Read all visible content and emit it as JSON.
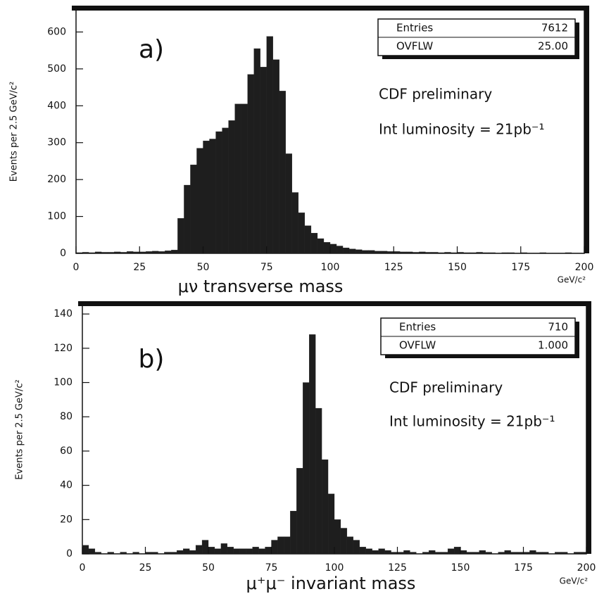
{
  "chart_data": [
    {
      "type": "histogram",
      "label": "a)",
      "ylabel": "Events per 2.5 GeV/c²",
      "xlabel": "μν  transverse mass",
      "xunit": "GeV/c²",
      "stats": [
        [
          "Entries",
          "7612"
        ],
        [
          "OVFLW",
          "25.00"
        ]
      ],
      "annotations": [
        "CDF preliminary",
        "Int luminosity = 21pb⁻¹"
      ],
      "color": "#1e1e1e",
      "bins": [
        0,
        2.5,
        5,
        7.5,
        10,
        12.5,
        15,
        17.5,
        20,
        22.5,
        25,
        27.5,
        30,
        32.5,
        35,
        37.5,
        40,
        42.5,
        45,
        47.5,
        50,
        52.5,
        55,
        57.5,
        60,
        62.5,
        65,
        67.5,
        70,
        72.5,
        75,
        77.5,
        80,
        82.5,
        85,
        87.5,
        90,
        92.5,
        95,
        97.5,
        100,
        102.5,
        105,
        107.5,
        110,
        112.5,
        115,
        117.5,
        120,
        122.5,
        125,
        127.5,
        130,
        132.5,
        135,
        137.5,
        140,
        142.5,
        145,
        147.5,
        150,
        152.5,
        155,
        157.5,
        160,
        162.5,
        165,
        167.5,
        170,
        172.5,
        175,
        177.5,
        180,
        182.5,
        185,
        187.5,
        190,
        192.5,
        195,
        197.5,
        200
      ],
      "values": [
        2,
        3,
        2,
        4,
        3,
        3,
        4,
        3,
        5,
        4,
        4,
        5,
        6,
        5,
        7,
        9,
        95,
        185,
        240,
        285,
        305,
        310,
        330,
        340,
        360,
        405,
        405,
        485,
        555,
        505,
        588,
        525,
        440,
        270,
        165,
        110,
        75,
        55,
        40,
        30,
        25,
        20,
        15,
        12,
        10,
        8,
        8,
        6,
        6,
        5,
        5,
        4,
        4,
        3,
        4,
        3,
        3,
        2,
        3,
        2,
        3,
        2,
        2,
        3,
        2,
        2,
        1,
        2,
        2,
        1,
        2,
        1,
        1,
        2,
        1,
        1,
        1,
        2,
        1,
        1
      ],
      "xlim": [
        0,
        200
      ],
      "xticks": [
        0,
        25,
        50,
        75,
        100,
        125,
        150,
        175,
        200
      ],
      "ylim": [
        0,
        660
      ],
      "yticks": [
        0,
        100,
        200,
        300,
        400,
        500,
        600
      ]
    },
    {
      "type": "histogram",
      "label": "b)",
      "ylabel": "Events per 2.5 GeV/c²",
      "xlabel": "μ⁺μ⁻  invariant mass",
      "xunit": "GeV/c²",
      "stats": [
        [
          "Entries",
          "710"
        ],
        [
          "OVFLW",
          "1.000"
        ]
      ],
      "annotations": [
        "CDF preliminary",
        "Int luminosity = 21pb⁻¹"
      ],
      "color": "#1e1e1e",
      "bins": [
        0,
        2.5,
        5,
        7.5,
        10,
        12.5,
        15,
        17.5,
        20,
        22.5,
        25,
        27.5,
        30,
        32.5,
        35,
        37.5,
        40,
        42.5,
        45,
        47.5,
        50,
        52.5,
        55,
        57.5,
        60,
        62.5,
        65,
        67.5,
        70,
        72.5,
        75,
        77.5,
        80,
        82.5,
        85,
        87.5,
        90,
        92.5,
        95,
        97.5,
        100,
        102.5,
        105,
        107.5,
        110,
        112.5,
        115,
        117.5,
        120,
        122.5,
        125,
        127.5,
        130,
        132.5,
        135,
        137.5,
        140,
        142.5,
        145,
        147.5,
        150,
        152.5,
        155,
        157.5,
        160,
        162.5,
        165,
        167.5,
        170,
        172.5,
        175,
        177.5,
        180,
        182.5,
        185,
        187.5,
        190,
        192.5,
        195,
        197.5,
        200
      ],
      "values": [
        5,
        3,
        1,
        0,
        1,
        0,
        1,
        0,
        1,
        0,
        1,
        1,
        0,
        1,
        1,
        2,
        3,
        2,
        5,
        8,
        4,
        3,
        6,
        4,
        3,
        3,
        3,
        4,
        3,
        4,
        8,
        10,
        10,
        25,
        50,
        100,
        128,
        85,
        55,
        35,
        20,
        15,
        10,
        8,
        4,
        3,
        2,
        3,
        2,
        1,
        1,
        2,
        1,
        0,
        1,
        2,
        1,
        1,
        3,
        4,
        2,
        1,
        1,
        2,
        1,
        0,
        1,
        2,
        1,
        1,
        1,
        2,
        1,
        1,
        0,
        1,
        1,
        0,
        1,
        1
      ],
      "xlim": [
        0,
        200
      ],
      "xticks": [
        0,
        25,
        50,
        75,
        100,
        125,
        150,
        175,
        200
      ],
      "ylim": [
        0,
        145
      ],
      "yticks": [
        0,
        20,
        40,
        60,
        80,
        100,
        120,
        140
      ]
    }
  ]
}
